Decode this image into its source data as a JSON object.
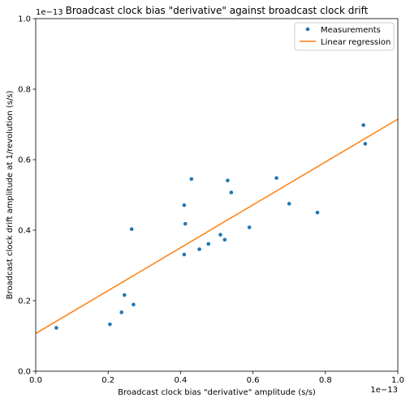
{
  "chart_data": {
    "type": "scatter",
    "title": "Broadcast clock bias \"derivative\" against broadcast clock drift",
    "xlabel": "Broadcast clock bias \"derivative\" amplitude (s/s)",
    "ylabel": "Broadcast clock drift amplitude at 1/revolution (s/s)",
    "x_offset_label": "1e−13",
    "y_offset_label": "1e−13",
    "xlim": [
      0,
      1
    ],
    "ylim": [
      0,
      1
    ],
    "xticks": [
      "0.0",
      "0.2",
      "0.4",
      "0.6",
      "0.8",
      "1.0"
    ],
    "yticks": [
      "0.0",
      "0.2",
      "0.4",
      "0.6",
      "0.8",
      "1.0"
    ],
    "grid": false,
    "legend_position": "top-right",
    "series": [
      {
        "name": "Measurements",
        "kind": "scatter",
        "color": "#1f77b4",
        "points": [
          {
            "x": 0.057,
            "y": 0.123
          },
          {
            "x": 0.205,
            "y": 0.133
          },
          {
            "x": 0.237,
            "y": 0.167
          },
          {
            "x": 0.245,
            "y": 0.216
          },
          {
            "x": 0.265,
            "y": 0.403
          },
          {
            "x": 0.27,
            "y": 0.189
          },
          {
            "x": 0.41,
            "y": 0.331
          },
          {
            "x": 0.41,
            "y": 0.471
          },
          {
            "x": 0.413,
            "y": 0.418
          },
          {
            "x": 0.43,
            "y": 0.545
          },
          {
            "x": 0.452,
            "y": 0.346
          },
          {
            "x": 0.477,
            "y": 0.361
          },
          {
            "x": 0.51,
            "y": 0.387
          },
          {
            "x": 0.522,
            "y": 0.373
          },
          {
            "x": 0.53,
            "y": 0.541
          },
          {
            "x": 0.54,
            "y": 0.507
          },
          {
            "x": 0.59,
            "y": 0.408
          },
          {
            "x": 0.665,
            "y": 0.548
          },
          {
            "x": 0.7,
            "y": 0.475
          },
          {
            "x": 0.778,
            "y": 0.45
          },
          {
            "x": 0.905,
            "y": 0.698
          },
          {
            "x": 0.91,
            "y": 0.645
          }
        ]
      },
      {
        "name": "Linear regression",
        "kind": "line",
        "color": "#ff7f0e",
        "points": [
          {
            "x": 0.0,
            "y": 0.107
          },
          {
            "x": 1.0,
            "y": 0.715
          }
        ]
      }
    ]
  }
}
